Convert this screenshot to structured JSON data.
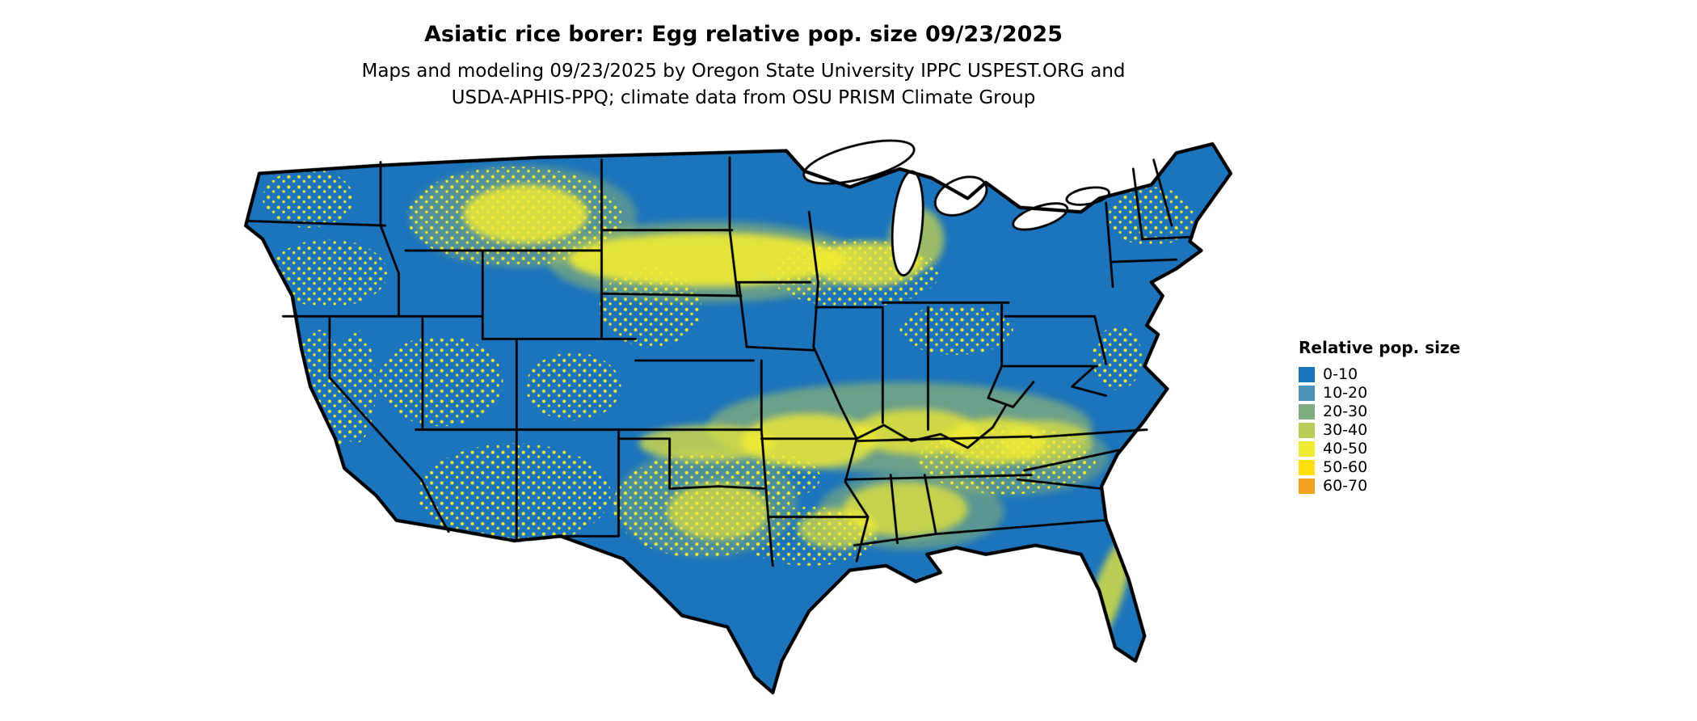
{
  "page": {
    "title": "Asiatic rice borer: Egg relative pop. size 09/23/2025",
    "subtitle_line1": "Maps and modeling 09/23/2025 by Oregon State University IPPC USPEST.ORG and",
    "subtitle_line2": "USDA-APHIS-PPQ; climate data from OSU PRISM Climate Group"
  },
  "legend": {
    "title": "Relative pop. size",
    "items": [
      {
        "label": "0-10",
        "color": "#1C74BC"
      },
      {
        "label": "10-20",
        "color": "#4D93B8"
      },
      {
        "label": "20-30",
        "color": "#7FAC80"
      },
      {
        "label": "30-40",
        "color": "#B9CC55"
      },
      {
        "label": "40-50",
        "color": "#F2EB33"
      },
      {
        "label": "50-60",
        "color": "#FFDF0E"
      },
      {
        "label": "60-70",
        "color": "#F3A01F"
      }
    ]
  },
  "map": {
    "description": "Contiguous United States raster map of relative population size",
    "base_color": "#1C74BC",
    "border_color": "#000000",
    "water_color": "#FFFFFF"
  }
}
